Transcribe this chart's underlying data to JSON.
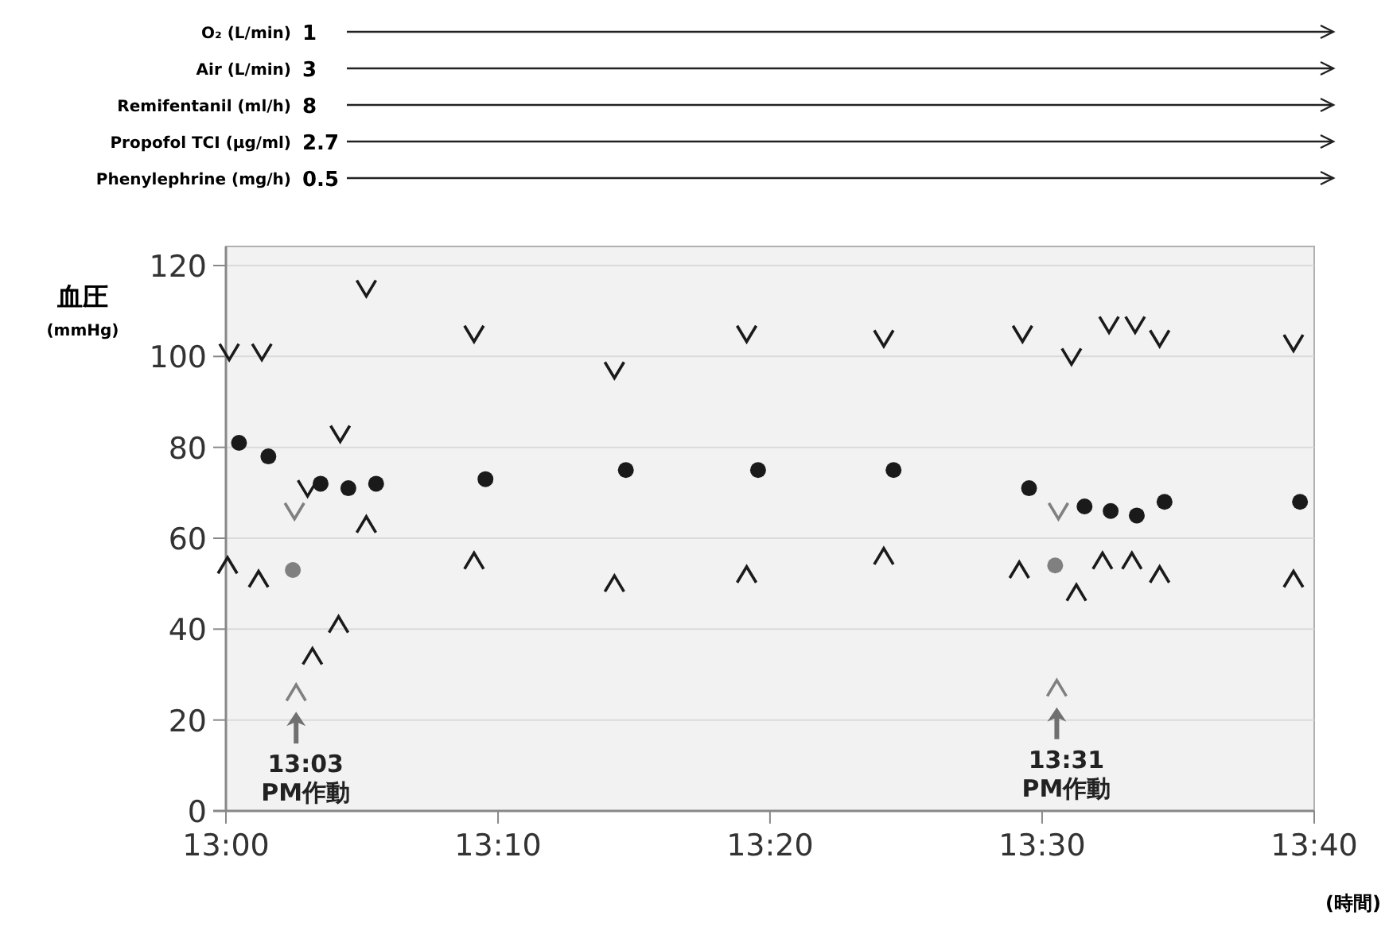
{
  "chart_data": {
    "type": "scatter",
    "xlabel": "(時間)",
    "ylabel": "血圧\n(mmHg)",
    "xlim": [
      13,
      13.6667
    ],
    "ylim": [
      0,
      120
    ],
    "xticks": [
      {
        "value": 13,
        "label": "13:00"
      },
      {
        "value": 13.1667,
        "label": "13:10"
      },
      {
        "value": 13.3333,
        "label": "13:20"
      },
      {
        "value": 13.5,
        "label": "13:30"
      },
      {
        "value": 13.6667,
        "label": "13:40"
      }
    ],
    "yticks": [
      0,
      20,
      40,
      60,
      80,
      100,
      120
    ],
    "grid": "y",
    "series": [
      {
        "color": "#1a1a1a",
        "x": [
          13.002,
          13.022,
          13.05,
          13.07,
          13.086,
          13.152,
          13.238,
          13.319,
          13.403,
          13.488,
          13.518,
          13.541,
          13.557,
          13.572,
          13.654
        ],
        "values": [
          101,
          101,
          71,
          83,
          115,
          105,
          97,
          105,
          104,
          105,
          100,
          107,
          107,
          104,
          103
        ]
      },
      {
        "color": "#1a1a1a",
        "x": [
          13.001,
          13.02,
          13.053,
          13.069,
          13.086,
          13.152,
          13.238,
          13.319,
          13.403,
          13.486,
          13.521,
          13.537,
          13.555,
          13.572,
          13.654
        ],
        "values": [
          54,
          51,
          34,
          41,
          63,
          55,
          50,
          52,
          56,
          53,
          48,
          55,
          55,
          52,
          51
        ]
      },
      {
        "marker": "circle",
        "color": "#1a1a1a",
        "x": [
          13.008,
          13.026,
          13.058,
          13.075,
          13.092,
          13.159,
          13.245,
          13.326,
          13.409,
          13.492,
          13.526,
          13.542,
          13.558,
          13.575,
          13.658
        ],
        "values": [
          81,
          78,
          72,
          71,
          72,
          73,
          75,
          75,
          75,
          71,
          67,
          66,
          65,
          68,
          68
        ]
      },
      {
        "color": "#808080",
        "x": [
          13.042,
          13.51
        ],
        "values": [
          66,
          66
        ]
      },
      {
        "marker": "circle",
        "color": "#808080",
        "x": [
          13.041,
          13.508
        ],
        "values": [
          53,
          54
        ]
      },
      {
        "color": "#808080",
        "x": [
          13.043,
          13.509
        ],
        "values": [
          26,
          27
        ]
      }
    ],
    "annotations": [
      "O₂ (L/min)",
      "1",
      "Air (L/min)",
      "3",
      "Remifentanil (ml/h)",
      "8",
      "Propofol TCI  (µg/ml)",
      "2.7",
      "Phenylephrine (mg/h)",
      "0.5",
      {
        "text": "13:03\nPM作動",
        "x": 13.043,
        "y": 26
      },
      {
        "text": "13:31\nPM作動",
        "x": 13.509,
        "y": 27
      }
    ]
  }
}
